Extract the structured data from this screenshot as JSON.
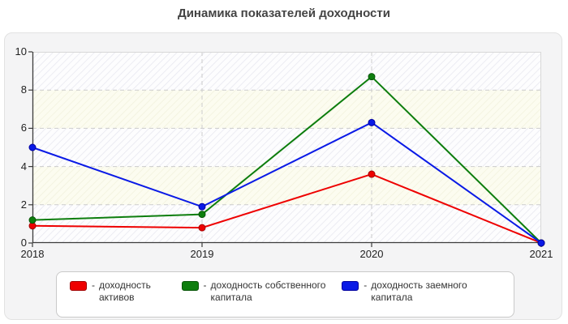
{
  "title": "Динамика показателей доходности",
  "chart_data": {
    "type": "line",
    "categories": [
      "2018",
      "2019",
      "2020",
      "2021"
    ],
    "series": [
      {
        "name": "доходность активов",
        "color": "#ee0000",
        "marker_border": "#a00000",
        "values": [
          0.9,
          0.8,
          3.6,
          0.0
        ]
      },
      {
        "name": "доходность собственного капитала",
        "color": "#0e7e0e",
        "marker_border": "#085508",
        "values": [
          1.2,
          1.5,
          8.7,
          0.0
        ]
      },
      {
        "name": "доходность заемного капитала",
        "color": "#0a1ae6",
        "marker_border": "#0000a0",
        "values": [
          5.0,
          1.9,
          6.3,
          0.0
        ]
      }
    ],
    "ylim": [
      0,
      10
    ],
    "yticks": [
      0,
      2,
      4,
      6,
      8,
      10
    ],
    "grid": "dashed",
    "legend_position": "bottom",
    "title": "Динамика показателей доходности"
  },
  "legend": {
    "prefix": "-",
    "items": [
      {
        "label": "доходность активов",
        "color": "#ee0000",
        "border": "#a00000"
      },
      {
        "label": "доходность собственного капитала",
        "color": "#0e7e0e",
        "border": "#085508"
      },
      {
        "label": "доходность заемного капитала",
        "color": "#0a1ae6",
        "border": "#0000a0"
      }
    ]
  },
  "colors": {
    "panel_bg": "#f4f4f5",
    "panel_border": "#e2e2e2",
    "axis": "#3c3c3c",
    "gridline": "#cccccc",
    "plot_border": "#d8d8d8",
    "tick_text": "#222222",
    "title_text": "#444444"
  }
}
